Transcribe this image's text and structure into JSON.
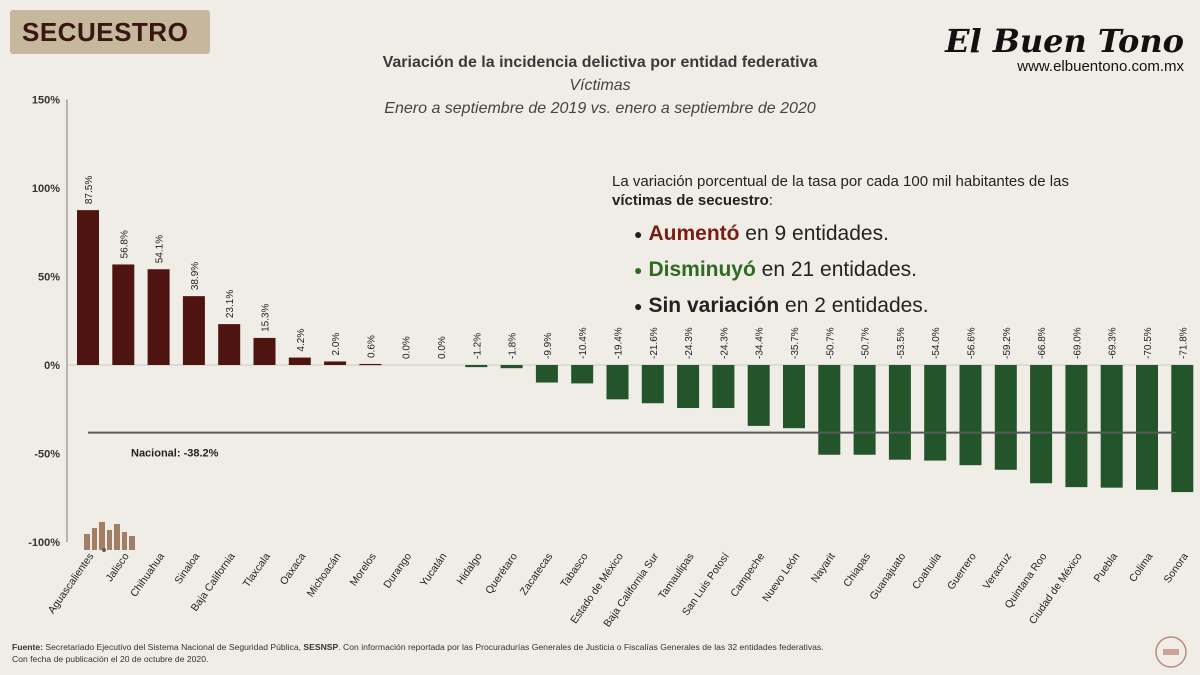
{
  "badge": "SECUESTRO",
  "title": {
    "line1": "Variación de la incidencia delictiva por entidad federativa",
    "line2": "Víctimas",
    "line3": "Enero a septiembre de 2019 vs. enero a septiembre de 2020"
  },
  "brand": {
    "name": "El Buen Tono",
    "url": "www.elbuentono.com.mx"
  },
  "summary": {
    "intro_a": "La variación porcentual de la tasa por cada 100 mil habitantes de las",
    "intro_b": "víctimas de secuestro",
    "intro_c": ":",
    "rows": [
      {
        "bold": "Aumentó",
        "rest": " en 9 entidades.",
        "color": "#7a1d14"
      },
      {
        "bold": "Disminuyó",
        "rest": " en 21 entidades.",
        "color": "#2f6b21"
      },
      {
        "bold": "Sin variación",
        "rest": " en 2 entidades.",
        "color": "#1a1a1a"
      }
    ]
  },
  "chart_data": {
    "type": "bar",
    "categories": [
      "Aguascalientes",
      "Jalisco",
      "Chihuahua",
      "Sinaloa",
      "Baja California",
      "Tlaxcala",
      "Oaxaca",
      "Michoacán",
      "Morelos",
      "Durango",
      "Yucatán",
      "Hidalgo",
      "Querétaro",
      "Zacatecas",
      "Tabasco",
      "Estado de México",
      "Baja California Sur",
      "Tamaulipas",
      "San Luis Potosí",
      "Campeche",
      "Nuevo León",
      "Nayarit",
      "Chiapas",
      "Guanajuato",
      "Coahuila",
      "Guerrero",
      "Veracruz",
      "Quintana Roo",
      "Ciudad de México",
      "Puebla",
      "Colima",
      "Sonora"
    ],
    "values": [
      87.5,
      56.8,
      54.1,
      38.9,
      23.1,
      15.3,
      4.2,
      2.0,
      0.6,
      0.0,
      0.0,
      -1.2,
      -1.8,
      -9.9,
      -10.4,
      -19.4,
      -21.6,
      -24.3,
      -24.3,
      -34.4,
      -35.7,
      -50.7,
      -50.7,
      -53.5,
      -54.0,
      -56.6,
      -59.2,
      -66.8,
      -69.0,
      -69.3,
      -70.5,
      -71.8
    ],
    "labels": [
      "87.5%",
      "56.8%",
      "54.1%",
      "38.9%",
      "23.1%",
      "15.3%",
      "4.2%",
      "2.0%",
      "0.6%",
      "0.0%",
      "0.0%",
      "-1.2%",
      "-1.8%",
      "-9.9%",
      "-10.4%",
      "-19.4%",
      "-21.6%",
      "-24.3%",
      "-24.3%",
      "-34.4%",
      "-35.7%",
      "-50.7%",
      "-50.7%",
      "-53.5%",
      "-54.0%",
      "-56.6%",
      "-59.2%",
      "-66.8%",
      "-69.0%",
      "-69.3%",
      "-70.5%",
      "-71.8%"
    ],
    "yticks": [
      150,
      100,
      50,
      0,
      -50,
      -100
    ],
    "ytick_labels": [
      "150%",
      "100%",
      "50%",
      "0%",
      "-50%",
      "-100%"
    ],
    "ylim": [
      -100,
      150
    ],
    "national": {
      "value": -38.2,
      "label": "Nacional: -38.2%"
    },
    "colors": {
      "positive": "#4d1410",
      "negative": "#24542a",
      "neutral": "#4d1410",
      "national_line": "#5a5a5a"
    },
    "grid": false
  },
  "footer": {
    "source_label": "Fuente:",
    "source_text_a": " Secretariado Ejecutivo del Sistema Nacional de Seguridad Pública, ",
    "source_bold": "SESNSP",
    "source_text_b": ". Con información reportada por las Procuradurías Generales de Justicia o Fiscalías Generales de las 32 entidades federativas.",
    "date_line": "Con fecha de publicación el 20 de octubre de 2020."
  }
}
